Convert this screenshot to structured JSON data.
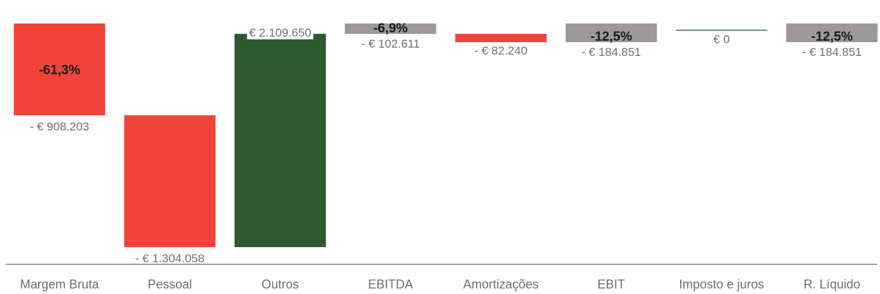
{
  "chart_data": {
    "type": "bar",
    "subtype": "waterfall",
    "categories": [
      "Margem Bruta",
      "Pessoal",
      "Outros",
      "EBITDA",
      "Amortizações",
      "EBIT",
      "Imposto e juros",
      "R. Líquido"
    ],
    "values": [
      -908203,
      -1304058,
      2109650,
      -102611,
      -82240,
      -184851,
      0,
      -184851
    ],
    "value_labels": [
      "- € 908.203",
      "- € 1.304.058",
      "€ 2.109.650",
      "- € 102.611",
      "- € 82.240",
      "- € 184.851",
      "€ 0",
      "- € 184.851"
    ],
    "percent_labels": [
      "-61,3%",
      "",
      "",
      "-6,9%",
      "",
      "-12,5%",
      "",
      "-12,5%"
    ],
    "bar_kinds": [
      "negative",
      "negative",
      "positive",
      "total",
      "negative",
      "total",
      "neutral",
      "total"
    ],
    "colors": {
      "negative": "#f1433a",
      "positive": "#2e5a30",
      "total": "#9e9898",
      "neutral": "#3d7a4a",
      "axis": "#a0a0a0"
    },
    "xlabel": "",
    "ylabel": "",
    "grid": false,
    "legend": "none"
  }
}
